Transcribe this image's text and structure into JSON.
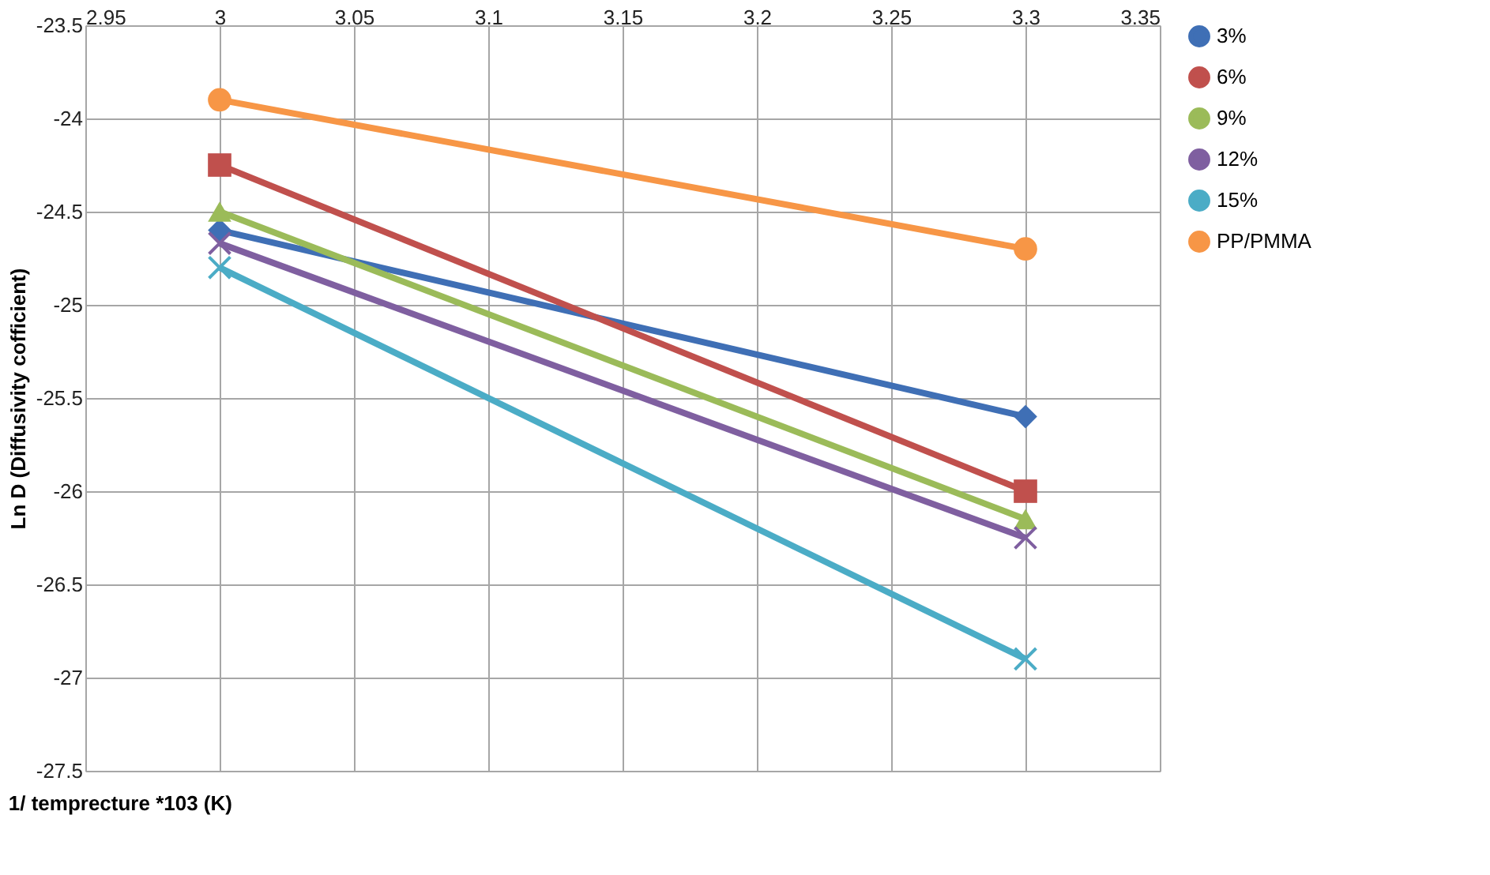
{
  "chart_data": {
    "type": "line",
    "xlabel": "1/ temprecture *103 (K)",
    "ylabel": "Ln D (Diffusivity cofficient)",
    "x": [
      3.0,
      3.3
    ],
    "series": [
      {
        "name": "3%",
        "color": "#3f6fb5",
        "marker": "diamond",
        "values": [
          -24.6,
          -25.6
        ]
      },
      {
        "name": "6%",
        "color": "#c0504d",
        "marker": "square",
        "values": [
          -24.25,
          -26.0
        ]
      },
      {
        "name": "9%",
        "color": "#9bbb59",
        "marker": "triangle",
        "values": [
          -24.5,
          -26.15
        ]
      },
      {
        "name": "12%",
        "color": "#7f5fa0",
        "marker": "cross",
        "values": [
          -24.67,
          -26.25
        ]
      },
      {
        "name": "15%",
        "color": "#4bacc6",
        "marker": "cross",
        "values": [
          -24.8,
          -26.9
        ]
      },
      {
        "name": "PP/PMMA",
        "color": "#f79646",
        "marker": "circle",
        "values": [
          -23.9,
          -24.7
        ]
      }
    ],
    "xlim": [
      2.95,
      3.35
    ],
    "xticks": [
      2.95,
      3,
      3.05,
      3.1,
      3.15,
      3.2,
      3.25,
      3.3,
      3.35
    ],
    "ylim": [
      -27.5,
      -23.5
    ],
    "yticks": [
      -27.5,
      -27,
      -26.5,
      -26,
      -25.5,
      -25,
      -24.5,
      -24,
      -23.5
    ],
    "grid": true,
    "legend": "right",
    "line_style": "solid"
  }
}
